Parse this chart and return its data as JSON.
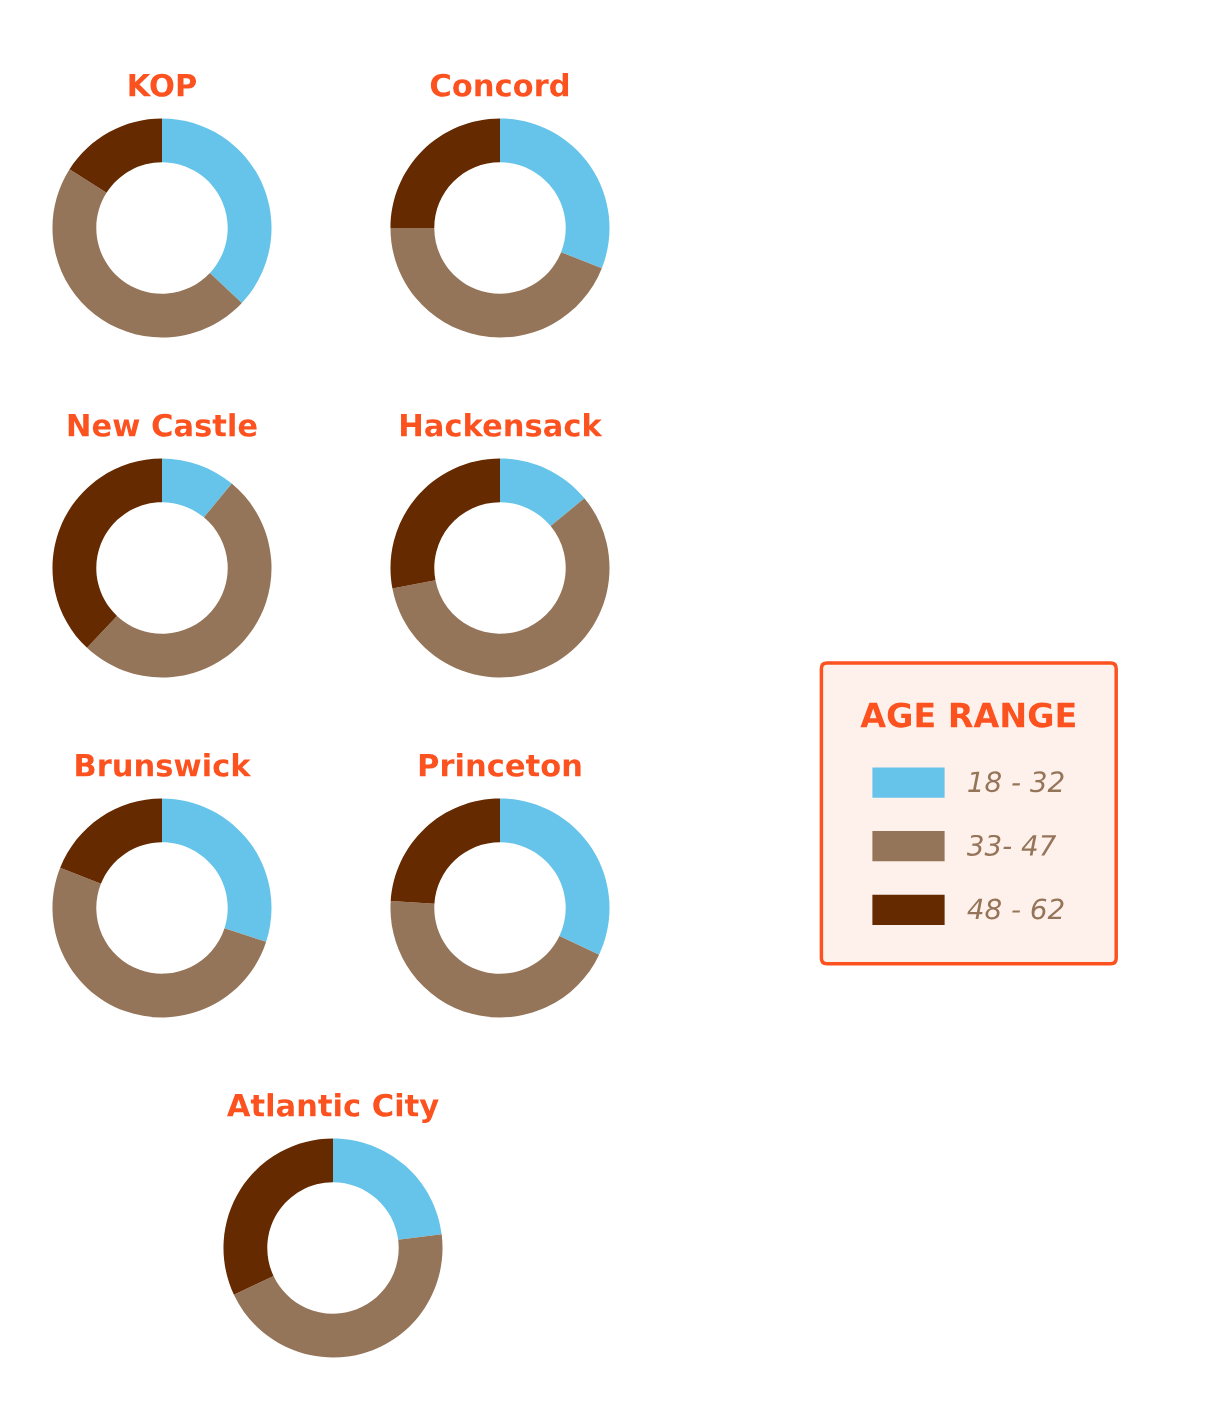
{
  "chart_data": [
    {
      "type": "donut",
      "title": "KOP",
      "categories": [
        "18 - 32",
        "33- 47",
        "48 - 62"
      ],
      "values": [
        37,
        47,
        16
      ],
      "colors": [
        "#66c4ea",
        "#957559",
        "#652a00"
      ],
      "legend": "right",
      "legend_title": "AGE RANGE"
    },
    {
      "type": "donut",
      "title": "Concord",
      "categories": [
        null,
        null,
        null
      ],
      "values": [
        31,
        44,
        25
      ],
      "colors": [
        "#66c4ea",
        "#957559",
        "#652a00"
      ]
    },
    {
      "type": "donut",
      "title": "New Castle",
      "categories": [
        null,
        null,
        null
      ],
      "values": [
        11,
        51,
        38
      ],
      "colors": [
        "#66c4ea",
        "#957559",
        "#652a00"
      ]
    },
    {
      "type": "donut",
      "title": "Hackensack",
      "categories": [
        null,
        null,
        null
      ],
      "values": [
        14,
        58,
        28
      ],
      "colors": [
        "#66c4ea",
        "#957559",
        "#652a00"
      ]
    },
    {
      "type": "donut",
      "title": "Brunswick",
      "categories": [
        null,
        null,
        null
      ],
      "values": [
        30,
        51,
        19
      ],
      "colors": [
        "#66c4ea",
        "#957559",
        "#652a00"
      ]
    },
    {
      "type": "donut",
      "title": "Princeton",
      "categories": [
        null,
        null,
        null
      ],
      "values": [
        32,
        44,
        24
      ],
      "colors": [
        "#66c4ea",
        "#957559",
        "#652a00"
      ]
    },
    {
      "type": "donut",
      "title": "Atlantic City",
      "categories": [
        null,
        null,
        null
      ],
      "values": [
        23,
        45,
        32
      ],
      "colors": [
        "#66c4ea",
        "#957559",
        "#652a00"
      ]
    }
  ]
}
